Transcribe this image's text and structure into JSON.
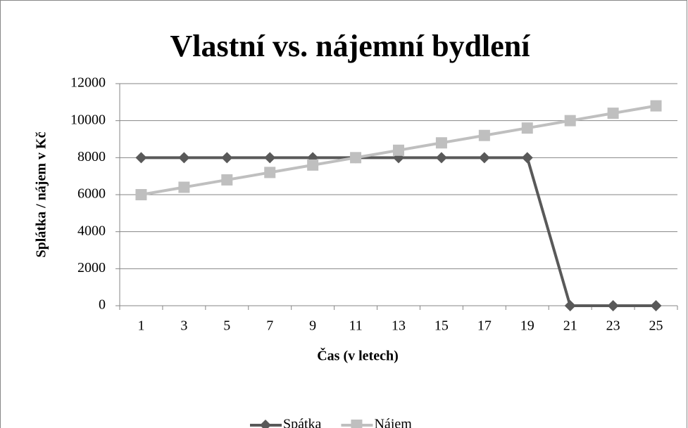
{
  "chart_data": {
    "type": "line",
    "title": "Vlastní vs. nájemní bydlení",
    "x_label": "Čas (v letech)",
    "y_label": "Splátka / nájem v Kč",
    "categories": [
      "1",
      "3",
      "5",
      "7",
      "9",
      "11",
      "13",
      "15",
      "17",
      "19",
      "21",
      "23",
      "25"
    ],
    "series": [
      {
        "name": "Spátka",
        "color": "#595959",
        "marker": "diamond",
        "values": [
          8000,
          8000,
          8000,
          8000,
          8000,
          8000,
          8000,
          8000,
          8000,
          8000,
          0,
          0,
          0
        ]
      },
      {
        "name": "Nájem",
        "color": "#bfbfbf",
        "marker": "square",
        "values": [
          6000,
          6400,
          6800,
          7200,
          7600,
          8000,
          8400,
          8800,
          9200,
          9600,
          10000,
          10400,
          10800
        ]
      }
    ],
    "ylim": [
      0,
      12000
    ],
    "yticks": [
      0,
      2000,
      4000,
      6000,
      8000,
      10000,
      12000
    ],
    "grid": true,
    "legend": "bottom"
  }
}
